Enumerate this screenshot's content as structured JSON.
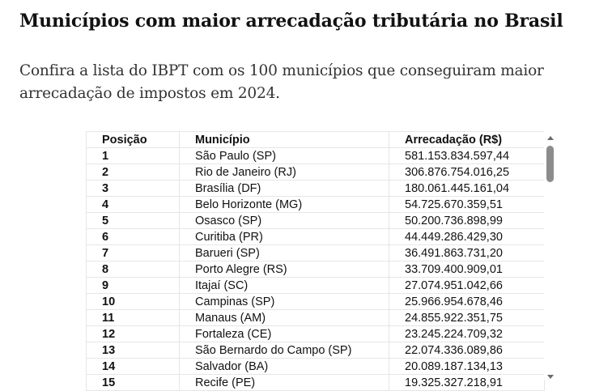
{
  "article": {
    "title": "Municípios com maior arrecadação tributária no Brasil",
    "subtitle": "Confira a lista do IBPT com os 100 municípios que conseguiram maior arrecadação de impostos em 2024."
  },
  "table": {
    "headers": [
      "Posição",
      "Município",
      "Arrecadação (R$)"
    ],
    "rows": [
      [
        "1",
        "São Paulo (SP)",
        "581.153.834.597,44"
      ],
      [
        "2",
        "Rio de Janeiro (RJ)",
        "306.876.754.016,25"
      ],
      [
        "3",
        "Brasília (DF)",
        "180.061.445.161,04"
      ],
      [
        "4",
        "Belo Horizonte (MG)",
        "54.725.670.359,51"
      ],
      [
        "5",
        "Osasco (SP)",
        "50.200.736.898,99"
      ],
      [
        "6",
        "Curitiba (PR)",
        "44.449.286.429,30"
      ],
      [
        "7",
        "Barueri (SP)",
        "36.491.863.731,20"
      ],
      [
        "8",
        "Porto Alegre (RS)",
        "33.709.400.909,01"
      ],
      [
        "9",
        "Itajaí (SC)",
        "27.074.951.042,66"
      ],
      [
        "10",
        "Campinas (SP)",
        "25.966.954.678,46"
      ],
      [
        "11",
        "Manaus (AM)",
        "24.855.922.351,75"
      ],
      [
        "12",
        "Fortaleza (CE)",
        "23.245.224.709,32"
      ],
      [
        "13",
        "São Bernardo do Campo (SP)",
        "22.074.336.089,86"
      ],
      [
        "14",
        "Salvador (BA)",
        "20.089.187.134,13"
      ],
      [
        "15",
        "Recife (PE)",
        "19.325.327.218,91"
      ]
    ]
  },
  "icons": {
    "scroll_up": "scroll-up-arrow-icon",
    "scroll_down": "scroll-down-arrow-icon"
  }
}
